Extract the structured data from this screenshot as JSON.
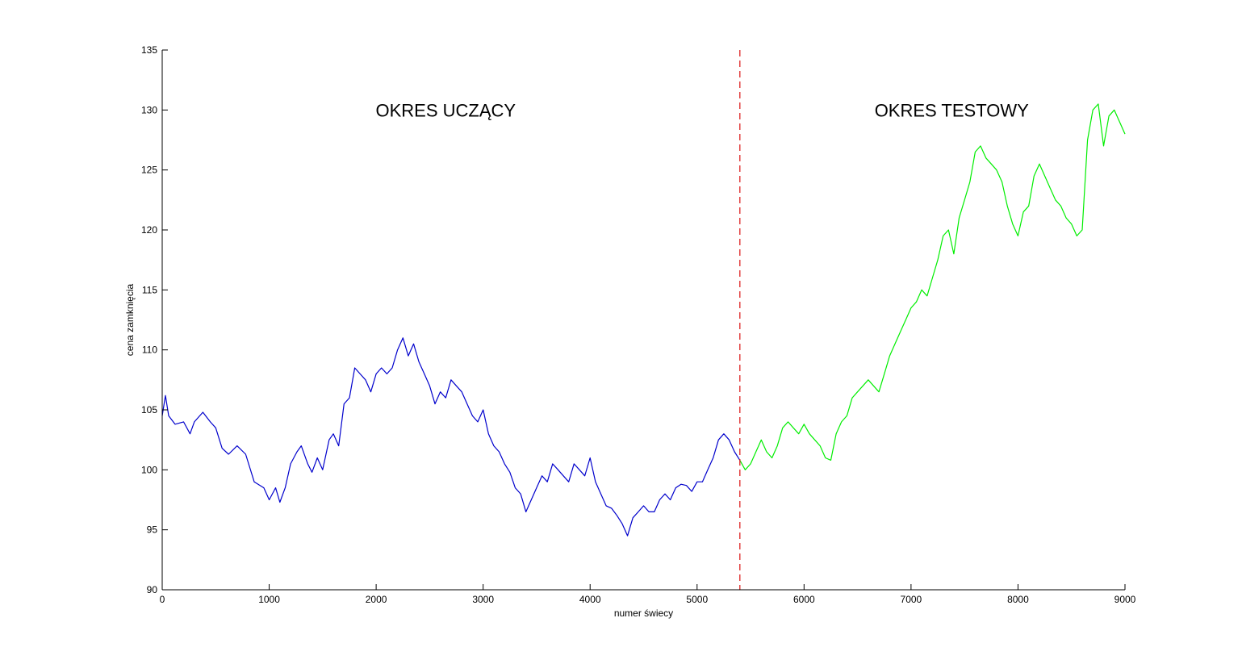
{
  "chart_data": {
    "type": "line",
    "xlabel": "numer świecy",
    "ylabel": "cena zamknięcia",
    "xlim": [
      0,
      9000
    ],
    "ylim": [
      90,
      135
    ],
    "xticks": [
      0,
      1000,
      2000,
      3000,
      4000,
      5000,
      6000,
      7000,
      8000,
      9000
    ],
    "yticks": [
      90,
      95,
      100,
      105,
      110,
      115,
      120,
      125,
      130,
      135
    ],
    "grid": false,
    "legend": "none",
    "divider": {
      "x": 5400,
      "color": "#dd2222",
      "style": "dashed"
    },
    "annotations": [
      {
        "text": "OKRES UCZĄCY",
        "x": 2650,
        "y": 130
      },
      {
        "text": "OKRES TESTOWY",
        "x": 7380,
        "y": 130
      }
    ],
    "series": [
      {
        "color": "#0000cc",
        "x": [
          0,
          30,
          60,
          120,
          200,
          260,
          300,
          380,
          450,
          500,
          560,
          620,
          700,
          780,
          860,
          950,
          1000,
          1060,
          1100,
          1150,
          1200,
          1260,
          1300,
          1360,
          1400,
          1450,
          1500,
          1560,
          1600,
          1650,
          1700,
          1750,
          1800,
          1850,
          1900,
          1950,
          2000,
          2050,
          2100,
          2150,
          2200,
          2250,
          2300,
          2350,
          2400,
          2450,
          2500,
          2550,
          2600,
          2650,
          2700,
          2750,
          2800,
          2850,
          2900,
          2950,
          3000,
          3050,
          3100,
          3150,
          3200,
          3250,
          3300,
          3350,
          3400,
          3450,
          3500,
          3550,
          3600,
          3650,
          3700,
          3750,
          3800,
          3850,
          3900,
          3950,
          4000,
          4050,
          4100,
          4150,
          4200,
          4250,
          4300,
          4350,
          4400,
          4450,
          4500,
          4550,
          4600,
          4650,
          4700,
          4750,
          4800,
          4850,
          4900,
          4950,
          5000,
          5050,
          5100,
          5150,
          5200,
          5250,
          5300,
          5350,
          5400
        ],
        "y": [
          104.5,
          106.2,
          104.5,
          103.8,
          104.0,
          103.0,
          104.0,
          104.8,
          104.0,
          103.5,
          101.8,
          101.3,
          102.0,
          101.3,
          99.0,
          98.5,
          97.5,
          98.5,
          97.3,
          98.5,
          100.5,
          101.5,
          102.0,
          100.5,
          99.8,
          101.0,
          100.0,
          102.5,
          103.0,
          102.0,
          105.5,
          106.0,
          108.5,
          108.0,
          107.5,
          106.5,
          108.0,
          108.5,
          108.0,
          108.5,
          110.0,
          111.0,
          109.5,
          110.5,
          109.0,
          108.0,
          107.0,
          105.5,
          106.5,
          106.0,
          107.5,
          107.0,
          106.5,
          105.5,
          104.5,
          104.0,
          105.0,
          103.0,
          102.0,
          101.5,
          100.5,
          99.8,
          98.5,
          98.0,
          96.5,
          97.5,
          98.5,
          99.5,
          99.0,
          100.5,
          100.0,
          99.5,
          99.0,
          100.5,
          100.0,
          99.5,
          101.0,
          99.0,
          98.0,
          97.0,
          96.8,
          96.2,
          95.5,
          94.5,
          96.0,
          96.5,
          97.0,
          96.5,
          96.5,
          97.5,
          98.0,
          97.5,
          98.5,
          98.8,
          98.7,
          98.2,
          99.0,
          99.0,
          100.0,
          101.0,
          102.5,
          103.0,
          102.5,
          101.5,
          100.8
        ]
      },
      {
        "color": "#00ee00",
        "x": [
          5400,
          5450,
          5500,
          5550,
          5600,
          5650,
          5700,
          5750,
          5800,
          5850,
          5900,
          5950,
          6000,
          6050,
          6100,
          6150,
          6200,
          6250,
          6300,
          6350,
          6400,
          6450,
          6500,
          6550,
          6600,
          6650,
          6700,
          6750,
          6800,
          6850,
          6900,
          6950,
          7000,
          7050,
          7100,
          7150,
          7200,
          7250,
          7300,
          7350,
          7400,
          7450,
          7500,
          7550,
          7600,
          7650,
          7700,
          7750,
          7800,
          7850,
          7900,
          7950,
          8000,
          8050,
          8100,
          8150,
          8200,
          8250,
          8300,
          8350,
          8400,
          8450,
          8500,
          8550,
          8600,
          8650,
          8700,
          8750,
          8800,
          8850,
          8900,
          8950,
          9000
        ],
        "y": [
          100.8,
          100.0,
          100.5,
          101.5,
          102.5,
          101.5,
          101.0,
          102.0,
          103.5,
          104.0,
          103.5,
          103.0,
          103.8,
          103.0,
          102.5,
          102.0,
          101.0,
          100.8,
          103.0,
          104.0,
          104.5,
          106.0,
          106.5,
          107.0,
          107.5,
          107.0,
          106.5,
          108.0,
          109.5,
          110.5,
          111.5,
          112.5,
          113.5,
          114.0,
          115.0,
          114.5,
          116.0,
          117.5,
          119.5,
          120.0,
          118.0,
          121.0,
          122.5,
          124.0,
          126.5,
          127.0,
          126.0,
          125.5,
          125.0,
          124.0,
          122.0,
          120.5,
          119.5,
          121.5,
          122.0,
          124.5,
          125.5,
          124.5,
          123.5,
          122.5,
          122.0,
          121.0,
          120.5,
          119.5,
          120.0,
          127.5,
          130.0,
          130.5,
          127.0,
          129.5,
          130.0,
          129.0,
          128.0
        ]
      }
    ]
  }
}
